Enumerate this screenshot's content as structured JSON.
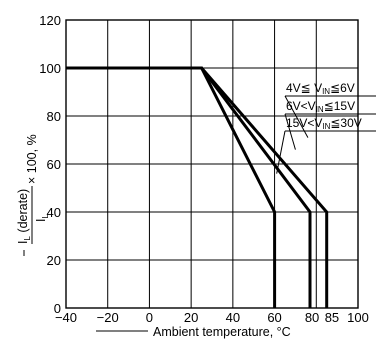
{
  "chart_data": {
    "type": "line",
    "xlabel": "Ambient temperature, °C",
    "ylabel": {
      "prefix": "I",
      "subscript": "L",
      "suffix": " (derate)",
      "denominator_prefix": "I",
      "denominator_subscript": "L",
      "tail": " × 100, %"
    },
    "xlim": [
      -40,
      100
    ],
    "ylim": [
      0,
      120
    ],
    "x_ticks": [
      "-40",
      "-20",
      "0",
      "20",
      "40",
      "60",
      "80",
      "85",
      "100"
    ],
    "x_tick_values": [
      -40,
      -20,
      0,
      20,
      40,
      60,
      80,
      85,
      100
    ],
    "y_ticks": [
      "0",
      "20",
      "40",
      "60",
      "80",
      "100",
      "120"
    ],
    "y_tick_values": [
      0,
      20,
      40,
      60,
      80,
      100,
      120
    ],
    "grid": true,
    "series": [
      {
        "label_parts": [
          "4V",
          "≦",
          " V",
          "IN",
          "≦",
          "6V"
        ],
        "x": [
          -40,
          25,
          85,
          85
        ],
        "y": [
          100,
          100,
          40,
          0
        ]
      },
      {
        "label_parts": [
          "6V",
          "<",
          "V",
          "IN",
          "≦",
          "15V"
        ],
        "x": [
          -40,
          25,
          77,
          77
        ],
        "y": [
          100,
          100,
          40,
          0
        ]
      },
      {
        "label_parts": [
          "15V",
          "<",
          "V",
          "IN",
          "≦",
          "30V"
        ],
        "x": [
          -40,
          25,
          60,
          60
        ],
        "y": [
          100,
          100,
          40,
          0
        ]
      }
    ]
  }
}
